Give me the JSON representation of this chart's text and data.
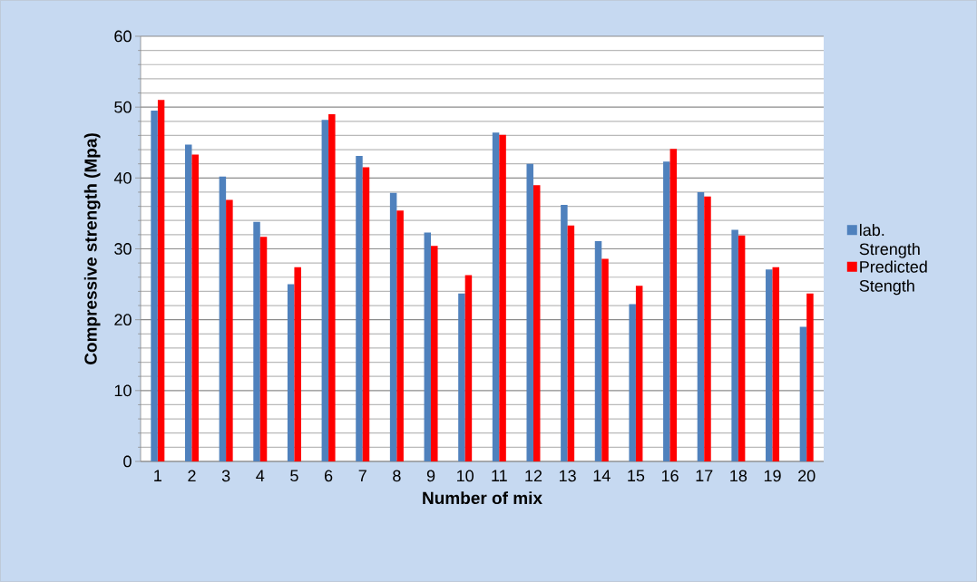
{
  "chart_data": {
    "type": "bar",
    "xlabel": "Number of mix",
    "ylabel": "Compressive strength (Mpa)",
    "categories": [
      "1",
      "2",
      "3",
      "4",
      "5",
      "6",
      "7",
      "8",
      "9",
      "10",
      "11",
      "12",
      "13",
      "14",
      "15",
      "16",
      "17",
      "18",
      "19",
      "20"
    ],
    "series": [
      {
        "name": "lab. Strength",
        "color": "#4f81bd",
        "values": [
          49.5,
          44.7,
          40.2,
          33.8,
          25.0,
          48.2,
          43.1,
          37.9,
          32.3,
          23.7,
          46.4,
          42.0,
          36.2,
          31.1,
          22.2,
          42.3,
          38.0,
          32.7,
          27.1,
          19.0
        ]
      },
      {
        "name": "Predicted Stength",
        "color": "#ff0000",
        "values": [
          51.0,
          43.3,
          36.9,
          31.7,
          27.4,
          49.0,
          41.5,
          35.4,
          30.4,
          26.3,
          46.1,
          39.0,
          33.3,
          28.6,
          24.8,
          44.1,
          37.4,
          31.9,
          27.4,
          23.7
        ]
      }
    ],
    "ylim": [
      0,
      60
    ],
    "yticks": [
      0,
      10,
      20,
      30,
      40,
      50,
      60
    ],
    "grid": "y",
    "legend": "right"
  }
}
